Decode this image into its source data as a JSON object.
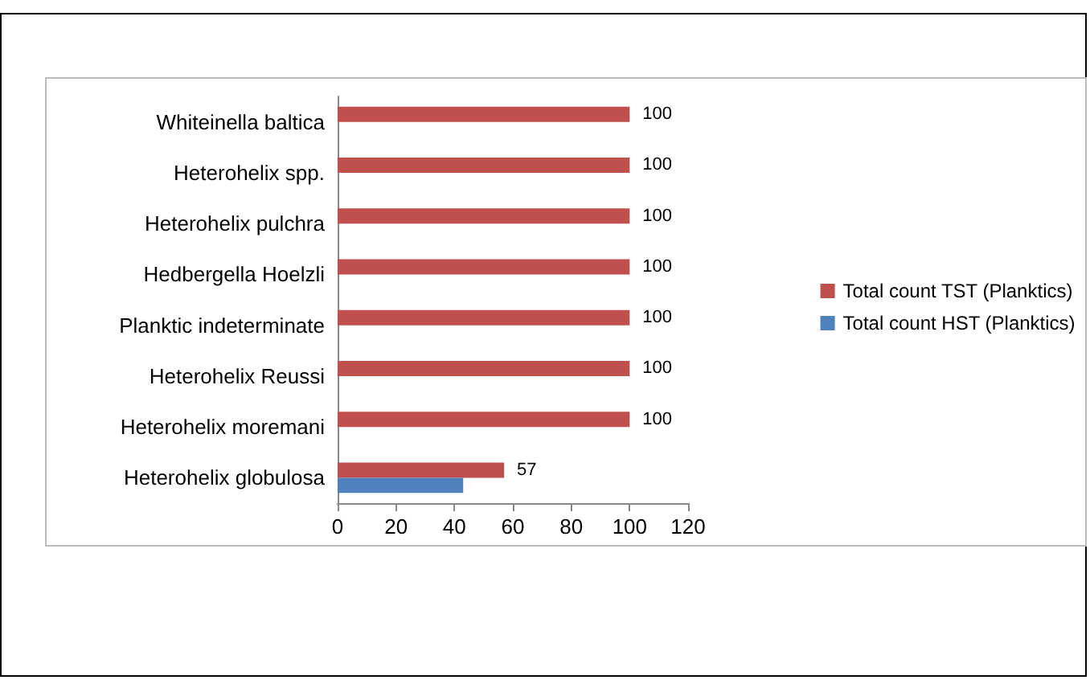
{
  "chart_data": {
    "type": "bar",
    "orientation": "horizontal",
    "categories": [
      "Whiteinella baltica",
      "Heterohelix spp.",
      "Heterohelix pulchra",
      "Hedbergella Hoelzli",
      "Planktic indeterminate",
      "Heterohelix Reussi",
      "Heterohelix moremani",
      "Heterohelix globulosa"
    ],
    "series": [
      {
        "name": "Total count TST (Planktics)",
        "color": "#c0504d",
        "values": [
          100,
          100,
          100,
          100,
          100,
          100,
          100,
          57
        ],
        "value_labels": [
          "100",
          "100",
          "100",
          "100",
          "100",
          "100",
          "100",
          "57"
        ]
      },
      {
        "name": "Total count HST (Planktics)",
        "color": "#4f81bd",
        "values": [
          null,
          null,
          null,
          null,
          null,
          null,
          null,
          43
        ]
      }
    ],
    "xlim": [
      0,
      120
    ],
    "xticks": [
      0,
      20,
      40,
      60,
      80,
      100,
      120
    ],
    "grid": false,
    "legend": "right"
  }
}
